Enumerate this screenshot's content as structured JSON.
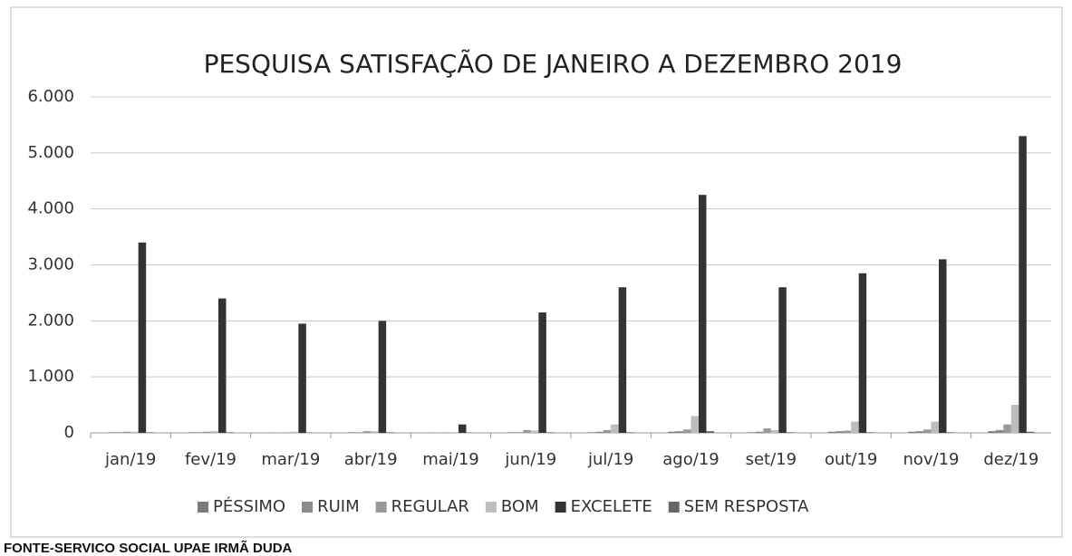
{
  "chart_data": {
    "type": "bar",
    "title": "PESQUISA SATISFAÇÃO DE JANEIRO A DEZEMBRO 2019",
    "categories": [
      "jan/19",
      "fev/19",
      "mar/19",
      "abr/19",
      "mai/19",
      "jun/19",
      "jul/19",
      "ago/19",
      "set/19",
      "out/19",
      "nov/19",
      "dez/19"
    ],
    "series": [
      {
        "name": "PÉSSIMO",
        "color": "#7a7a7a",
        "values": [
          10,
          10,
          5,
          10,
          5,
          10,
          10,
          20,
          10,
          20,
          20,
          30
        ]
      },
      {
        "name": "RUIM",
        "color": "#8a8a8a",
        "values": [
          10,
          10,
          5,
          10,
          5,
          10,
          20,
          30,
          20,
          30,
          30,
          50
        ]
      },
      {
        "name": "REGULAR",
        "color": "#999999",
        "values": [
          20,
          20,
          10,
          30,
          10,
          50,
          50,
          60,
          80,
          40,
          60,
          150
        ]
      },
      {
        "name": "BOM",
        "color": "#bdbdbd",
        "values": [
          20,
          30,
          20,
          30,
          10,
          40,
          150,
          300,
          50,
          200,
          200,
          500
        ]
      },
      {
        "name": "EXCELETE",
        "color": "#333333",
        "values": [
          3400,
          2400,
          1950,
          2000,
          150,
          2150,
          2600,
          4250,
          2600,
          2850,
          3100,
          5300
        ]
      },
      {
        "name": "SEM RESPOSTA",
        "color": "#666666",
        "values": [
          10,
          10,
          5,
          10,
          5,
          10,
          10,
          30,
          10,
          10,
          10,
          20
        ]
      }
    ],
    "ylim": [
      0,
      6000
    ],
    "yticks": [
      0,
      {
        "value": 1000,
        "label": "1.000"
      },
      {
        "value": 2000,
        "label": "2.000"
      },
      {
        "value": 3000,
        "label": "3.000"
      },
      {
        "value": 4000,
        "label": "4.000"
      },
      {
        "value": 5000,
        "label": "5.000"
      },
      {
        "value": 6000,
        "label": "6.000"
      }
    ],
    "grid": true,
    "legend": "bottom",
    "source": "FONTE-SERVICO SOCIAL UPAE IRMÃ DUDA"
  }
}
